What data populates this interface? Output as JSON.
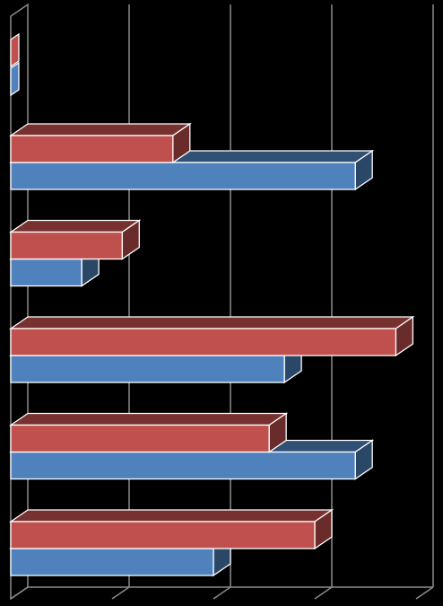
{
  "chart_data": {
    "type": "bar",
    "orientation": "horizontal",
    "style": "3d-clustered",
    "title": "",
    "xlabel": "",
    "ylabel": "",
    "categories": [
      "",
      "",
      "",
      "",
      ""
    ],
    "xlim": [
      0,
      4
    ],
    "grid": true,
    "legend": "top-left",
    "series": [
      {
        "values": [
          1.6,
          1.1,
          3.8,
          2.55,
          3.0
        ],
        "color": "#C0504D"
      },
      {
        "values": [
          3.4,
          0.7,
          2.7,
          3.4,
          2.0
        ],
        "color": "#4F81BD"
      }
    ]
  }
}
